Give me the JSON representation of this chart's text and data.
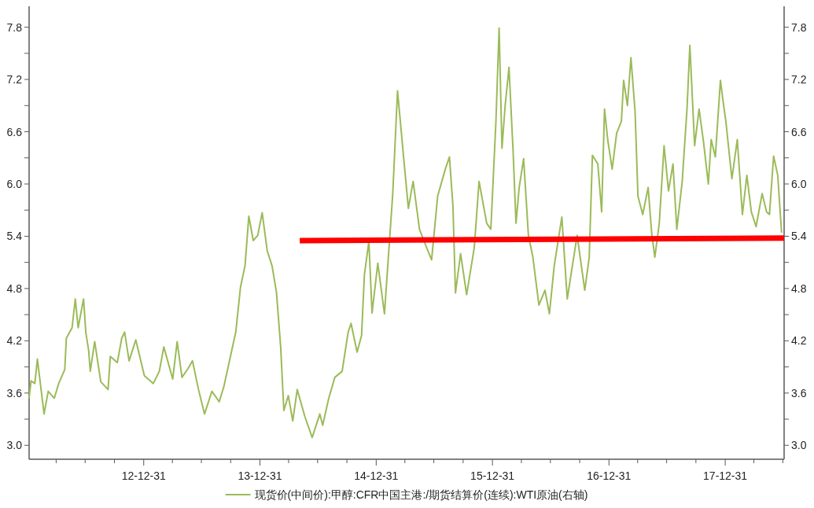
{
  "chart_data": {
    "type": "line",
    "xlim": [
      "2012-01-06",
      "2018-07-04"
    ],
    "ylim": [
      2.84,
      8.04
    ],
    "y2lim": [
      2.84,
      8.04
    ],
    "xticks": [
      {
        "value": "2012-03-31",
        "label": null
      },
      {
        "value": "2012-06-30",
        "label": null
      },
      {
        "value": "2012-09-30",
        "label": null
      },
      {
        "value": "2012-12-31",
        "label": "12-12-31"
      },
      {
        "value": "2013-03-31",
        "label": null
      },
      {
        "value": "2013-06-30",
        "label": null
      },
      {
        "value": "2013-09-30",
        "label": null
      },
      {
        "value": "2013-12-31",
        "label": "13-12-31"
      },
      {
        "value": "2014-03-31",
        "label": null
      },
      {
        "value": "2014-06-30",
        "label": null
      },
      {
        "value": "2014-09-30",
        "label": null
      },
      {
        "value": "2014-12-31",
        "label": "14-12-31"
      },
      {
        "value": "2015-03-31",
        "label": null
      },
      {
        "value": "2015-06-30",
        "label": null
      },
      {
        "value": "2015-09-30",
        "label": null
      },
      {
        "value": "2015-12-31",
        "label": "15-12-31"
      },
      {
        "value": "2016-03-31",
        "label": null
      },
      {
        "value": "2016-06-30",
        "label": null
      },
      {
        "value": "2016-09-30",
        "label": null
      },
      {
        "value": "2016-12-31",
        "label": "16-12-31"
      },
      {
        "value": "2017-03-31",
        "label": null
      },
      {
        "value": "2017-06-30",
        "label": null
      },
      {
        "value": "2017-09-30",
        "label": null
      },
      {
        "value": "2017-12-31",
        "label": "17-12-31"
      },
      {
        "value": "2018-03-31",
        "label": null
      },
      {
        "value": "2018-06-30",
        "label": null
      }
    ],
    "yticks": [
      {
        "value": 3,
        "label": "3.0"
      },
      {
        "value": 3.3,
        "label": null
      },
      3.6,
      {
        "value": 3.9,
        "label": null
      },
      4.2,
      {
        "value": 4.5,
        "label": null
      },
      4.8,
      {
        "value": 5.1,
        "label": null
      },
      5.4,
      {
        "value": 5.7,
        "label": null
      },
      {
        "value": 6,
        "label": "6.0"
      },
      {
        "value": 6.3,
        "label": null
      },
      6.6,
      {
        "value": 6.9,
        "label": null
      },
      7.2,
      {
        "value": 7.5,
        "label": null
      },
      7.8
    ],
    "y2ticks": [
      {
        "value": 3,
        "label": "3.0"
      },
      {
        "value": 3.3,
        "label": null
      },
      3.6,
      {
        "value": 3.9,
        "label": null
      },
      4.2,
      {
        "value": 4.5,
        "label": null
      },
      4.8,
      {
        "value": 5.1,
        "label": null
      },
      5.4,
      {
        "value": 5.7,
        "label": null
      },
      {
        "value": 6,
        "label": "6.0"
      },
      {
        "value": 6.3,
        "label": null
      },
      6.6,
      {
        "value": 6.9,
        "label": null
      },
      7.2,
      {
        "value": 7.5,
        "label": null
      },
      7.8
    ],
    "grid": false,
    "legend": "bottom",
    "marker": "none",
    "line_style": "solid",
    "series": [
      {
        "name": "现货价(中间价):甲醇:CFR中国主港:/期货结算价(连续):WTI原油(右轴)",
        "color": "#9bbb59",
        "x": [
          "2012-01-06",
          "2012-01-12",
          "2012-01-24",
          "2012-02-01",
          "2012-02-22",
          "2012-03-06",
          "2012-03-25",
          "2012-04-08",
          "2012-04-27",
          "2012-05-02",
          "2012-05-20",
          "2012-05-30",
          "2012-06-08",
          "2012-06-25",
          "2012-07-02",
          "2012-07-11",
          "2012-07-16",
          "2012-07-30",
          "2012-08-18",
          "2012-09-10",
          "2012-09-17",
          "2012-10-09",
          "2012-10-23",
          "2012-11-01",
          "2012-11-15",
          "2012-12-06",
          "2013-01-02",
          "2013-01-30",
          "2013-02-18",
          "2013-03-04",
          "2013-04-01",
          "2013-04-15",
          "2013-04-30",
          "2013-05-19",
          "2013-06-02",
          "2013-06-21",
          "2013-07-10",
          "2013-08-02",
          "2013-08-25",
          "2013-09-09",
          "2013-09-28",
          "2013-10-16",
          "2013-10-31",
          "2013-11-14",
          "2013-11-26",
          "2013-12-10",
          "2013-12-24",
          "2014-01-07",
          "2014-01-23",
          "2014-02-07",
          "2014-02-21",
          "2014-03-06",
          "2014-03-16",
          "2014-03-30",
          "2014-04-13",
          "2014-04-27",
          "2014-05-21",
          "2014-06-13",
          "2014-07-07",
          "2014-07-16",
          "2014-08-04",
          "2014-08-23",
          "2014-09-15",
          "2014-10-04",
          "2014-10-13",
          "2014-11-01",
          "2014-11-15",
          "2014-11-24",
          "2014-12-08",
          "2014-12-18",
          "2015-01-05",
          "2015-01-26",
          "2015-02-04",
          "2015-02-21",
          "2015-03-08",
          "2015-03-27",
          "2015-04-11",
          "2015-04-26",
          "2015-05-16",
          "2015-06-04",
          "2015-06-23",
          "2015-07-12",
          "2015-08-05",
          "2015-08-18",
          "2015-08-29",
          "2015-09-06",
          "2015-09-22",
          "2015-10-11",
          "2015-11-04",
          "2015-11-19",
          "2015-12-13",
          "2015-12-26",
          "2016-01-11",
          "2016-01-21",
          "2016-01-30",
          "2016-02-09",
          "2016-02-21",
          "2016-03-05",
          "2016-03-14",
          "2016-03-24",
          "2016-04-07",
          "2016-04-22",
          "2016-05-06",
          "2016-05-25",
          "2016-06-13",
          "2016-06-27",
          "2016-07-12",
          "2016-08-05",
          "2016-08-22",
          "2016-09-07",
          "2016-09-22",
          "2016-10-16",
          "2016-10-30",
          "2016-11-09",
          "2016-11-26",
          "2016-12-08",
          "2016-12-17",
          "2016-12-27",
          "2017-01-10",
          "2017-01-24",
          "2017-02-08",
          "2017-02-15",
          "2017-02-27",
          "2017-03-10",
          "2017-03-23",
          "2017-04-01",
          "2017-04-16",
          "2017-05-03",
          "2017-05-14",
          "2017-05-24",
          "2017-06-07",
          "2017-06-22",
          "2017-07-06",
          "2017-07-20",
          "2017-08-01",
          "2017-08-18",
          "2017-09-02",
          "2017-09-11",
          "2017-09-26",
          "2017-10-10",
          "2017-10-24",
          "2017-11-08",
          "2017-11-17",
          "2017-11-30",
          "2017-12-16",
          "2017-12-24",
          "2018-01-02",
          "2018-01-21",
          "2018-02-07",
          "2018-02-23",
          "2018-03-09",
          "2018-03-23",
          "2018-04-07",
          "2018-04-26",
          "2018-05-10",
          "2018-05-19",
          "2018-06-01",
          "2018-06-14",
          "2018-06-26"
        ],
        "values": [
          3.54,
          3.74,
          3.71,
          3.99,
          3.36,
          3.62,
          3.54,
          3.71,
          3.87,
          4.23,
          4.35,
          4.68,
          4.35,
          4.68,
          4.3,
          4.09,
          3.85,
          4.19,
          3.73,
          3.64,
          4.02,
          3.95,
          4.23,
          4.3,
          3.97,
          4.21,
          3.8,
          3.71,
          3.85,
          4.13,
          3.76,
          4.19,
          3.78,
          3.88,
          3.97,
          3.64,
          3.36,
          3.62,
          3.5,
          3.68,
          4.0,
          4.3,
          4.82,
          5.06,
          5.63,
          5.35,
          5.41,
          5.67,
          5.23,
          5.06,
          4.75,
          4.13,
          3.4,
          3.57,
          3.28,
          3.64,
          3.33,
          3.09,
          3.36,
          3.23,
          3.54,
          3.78,
          3.85,
          4.3,
          4.4,
          4.07,
          4.26,
          4.96,
          5.34,
          4.52,
          5.09,
          4.51,
          4.99,
          5.89,
          7.07,
          6.31,
          5.72,
          6.03,
          5.48,
          5.3,
          5.13,
          5.86,
          6.17,
          6.31,
          5.75,
          4.75,
          5.2,
          4.73,
          5.27,
          6.03,
          5.55,
          5.48,
          6.72,
          7.79,
          6.41,
          6.9,
          7.34,
          6.37,
          5.55,
          5.96,
          6.29,
          5.41,
          5.16,
          4.61,
          4.78,
          4.51,
          5.06,
          5.62,
          4.68,
          5.06,
          5.41,
          4.78,
          5.16,
          6.33,
          6.23,
          5.68,
          6.86,
          6.51,
          6.17,
          6.58,
          6.72,
          7.19,
          6.9,
          7.45,
          6.83,
          5.86,
          5.65,
          5.96,
          5.44,
          5.16,
          5.55,
          6.44,
          5.92,
          6.23,
          5.48,
          6.03,
          6.86,
          7.59,
          6.44,
          6.86,
          6.48,
          6.0,
          6.51,
          6.31,
          7.19,
          6.96,
          6.72,
          6.06,
          6.51,
          5.65,
          6.1,
          5.68,
          5.51,
          5.89,
          5.68,
          5.65,
          6.32,
          6.1,
          5.44
        ]
      },
      {
        "color": "#ff0000",
        "x": [
          "2014-05-05",
          "2018-07-04"
        ],
        "values": [
          5.35,
          5.38
        ]
      }
    ]
  }
}
